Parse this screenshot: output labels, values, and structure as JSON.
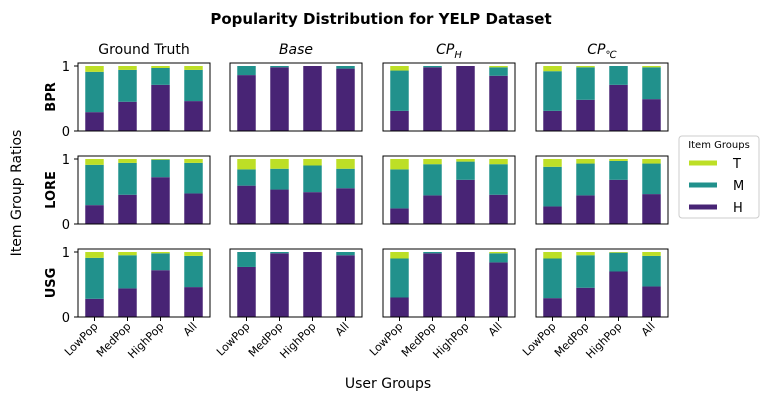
{
  "chart_data": {
    "type": "bar",
    "stacked": true,
    "title": "Popularity Distribution for YELP Dataset",
    "xlabel": "User Groups",
    "ylabel": "Item Group Ratios",
    "ylim": [
      0,
      1
    ],
    "yticks": [
      "0",
      "1"
    ],
    "categories": [
      "LowPop",
      "MedPop",
      "HighPop",
      "All"
    ],
    "legend": {
      "title": "Item Groups",
      "placement": "right",
      "entries": [
        {
          "label": "T",
          "color": "#bddf26"
        },
        {
          "label": "M",
          "color": "#21918c"
        },
        {
          "label": "H",
          "color": "#482475"
        }
      ]
    },
    "columns": [
      {
        "title": "Ground Truth",
        "italic": false
      },
      {
        "title": "Base",
        "italic": true
      },
      {
        "title": "CP",
        "sub": "H",
        "italic": true
      },
      {
        "title": "CP",
        "sub": "℃",
        "italic": true
      }
    ],
    "rows": [
      "BPR",
      "LORE",
      "USG"
    ],
    "panels": [
      [
        {
          "H": [
            0.29,
            0.45,
            0.71,
            0.46
          ],
          "M": [
            0.62,
            0.49,
            0.26,
            0.48
          ],
          "T": [
            0.09,
            0.06,
            0.03,
            0.06
          ]
        },
        {
          "H": [
            0.86,
            0.98,
            1.0,
            0.96
          ],
          "M": [
            0.14,
            0.02,
            0.0,
            0.04
          ],
          "T": [
            0.0,
            0.0,
            0.0,
            0.0
          ]
        },
        {
          "H": [
            0.31,
            0.98,
            1.0,
            0.85
          ],
          "M": [
            0.62,
            0.02,
            0.0,
            0.13
          ],
          "T": [
            0.07,
            0.0,
            0.0,
            0.02
          ]
        },
        {
          "H": [
            0.31,
            0.48,
            0.71,
            0.49
          ],
          "M": [
            0.61,
            0.5,
            0.29,
            0.49
          ],
          "T": [
            0.08,
            0.02,
            0.0,
            0.02
          ]
        }
      ],
      [
        {
          "H": [
            0.29,
            0.45,
            0.72,
            0.47
          ],
          "M": [
            0.62,
            0.49,
            0.27,
            0.47
          ],
          "T": [
            0.09,
            0.06,
            0.01,
            0.06
          ]
        },
        {
          "H": [
            0.59,
            0.53,
            0.49,
            0.55
          ],
          "M": [
            0.25,
            0.32,
            0.41,
            0.3
          ],
          "T": [
            0.16,
            0.15,
            0.1,
            0.15
          ]
        },
        {
          "H": [
            0.24,
            0.44,
            0.68,
            0.45
          ],
          "M": [
            0.6,
            0.48,
            0.28,
            0.47
          ],
          "T": [
            0.16,
            0.08,
            0.04,
            0.08
          ]
        },
        {
          "H": [
            0.27,
            0.44,
            0.68,
            0.46
          ],
          "M": [
            0.61,
            0.49,
            0.29,
            0.47
          ],
          "T": [
            0.12,
            0.07,
            0.03,
            0.07
          ]
        }
      ],
      [
        {
          "H": [
            0.28,
            0.44,
            0.72,
            0.46
          ],
          "M": [
            0.63,
            0.51,
            0.26,
            0.48
          ],
          "T": [
            0.09,
            0.05,
            0.02,
            0.06
          ]
        },
        {
          "H": [
            0.77,
            0.98,
            1.0,
            0.95
          ],
          "M": [
            0.23,
            0.02,
            0.0,
            0.05
          ],
          "T": [
            0.0,
            0.0,
            0.0,
            0.0
          ]
        },
        {
          "H": [
            0.3,
            0.98,
            1.0,
            0.84
          ],
          "M": [
            0.6,
            0.02,
            0.0,
            0.14
          ],
          "T": [
            0.1,
            0.0,
            0.0,
            0.02
          ]
        },
        {
          "H": [
            0.29,
            0.45,
            0.7,
            0.47
          ],
          "M": [
            0.61,
            0.5,
            0.29,
            0.47
          ],
          "T": [
            0.1,
            0.05,
            0.01,
            0.06
          ]
        }
      ]
    ]
  }
}
